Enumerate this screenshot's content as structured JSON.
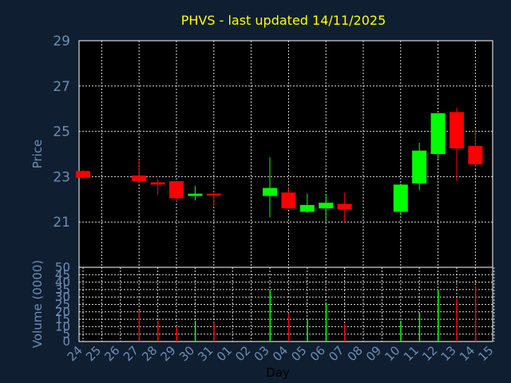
{
  "title": "PHVS - last updated 14/11/2025",
  "chart_data": [
    {
      "type": "candlestick",
      "ylabel": "Price",
      "ylim": [
        19,
        29
      ],
      "yticks": [
        29,
        27,
        25,
        23,
        21
      ],
      "grid": true,
      "colors": {
        "up": "#00ff00",
        "down": "#ff0000"
      },
      "candles": [
        {
          "x": "24",
          "open": 23.25,
          "high": 23.3,
          "low": 22.9,
          "close": 22.95
        },
        {
          "x": "27",
          "open": 23.05,
          "high": 23.75,
          "low": 22.75,
          "close": 22.8
        },
        {
          "x": "28",
          "open": 22.75,
          "high": 22.9,
          "low": 22.2,
          "close": 22.65
        },
        {
          "x": "29",
          "open": 22.8,
          "high": 22.8,
          "low": 21.9,
          "close": 22.05
        },
        {
          "x": "30",
          "open": 22.15,
          "high": 22.6,
          "low": 21.95,
          "close": 22.25
        },
        {
          "x": "31",
          "open": 22.25,
          "high": 22.35,
          "low": 21.7,
          "close": 22.2
        },
        {
          "x": "03",
          "open": 22.15,
          "high": 23.85,
          "low": 21.2,
          "close": 22.5
        },
        {
          "x": "04",
          "open": 22.3,
          "high": 22.5,
          "low": 21.6,
          "close": 21.6
        },
        {
          "x": "05",
          "open": 21.45,
          "high": 22.25,
          "low": 21.4,
          "close": 21.75
        },
        {
          "x": "06",
          "open": 21.6,
          "high": 22.2,
          "low": 21.1,
          "close": 21.85
        },
        {
          "x": "07",
          "open": 21.8,
          "high": 22.3,
          "low": 21.0,
          "close": 21.55
        },
        {
          "x": "10",
          "open": 21.45,
          "high": 22.7,
          "low": 21.3,
          "close": 22.65
        },
        {
          "x": "11",
          "open": 22.7,
          "high": 24.5,
          "low": 22.4,
          "close": 24.15
        },
        {
          "x": "12",
          "open": 24.0,
          "high": 25.8,
          "low": 23.8,
          "close": 25.8
        },
        {
          "x": "13",
          "open": 25.85,
          "high": 26.05,
          "low": 22.8,
          "close": 24.25
        },
        {
          "x": "14",
          "open": 24.35,
          "high": 25.1,
          "low": 23.45,
          "close": 23.55
        }
      ]
    },
    {
      "type": "bar",
      "ylabel": "Volume (0000)",
      "ylim": [
        0,
        50
      ],
      "yticks": [
        50,
        45,
        40,
        35,
        30,
        25,
        20,
        15,
        10,
        5,
        0
      ],
      "xlabel": "Day",
      "categories": [
        "24",
        "25",
        "26",
        "27",
        "28",
        "29",
        "30",
        "31",
        "01",
        "02",
        "03",
        "04",
        "05",
        "06",
        "07",
        "08",
        "09",
        "10",
        "11",
        "12",
        "13",
        "14",
        "15"
      ],
      "values": [
        0,
        0,
        0,
        21,
        14,
        10,
        14,
        13,
        0,
        0,
        35,
        19,
        15,
        26,
        12,
        0,
        0,
        14,
        19,
        35,
        29,
        37,
        0
      ],
      "bar_colors": [
        "#ff0000",
        "#ff0000",
        "#ff0000",
        "#ff0000",
        "#ff0000",
        "#ff0000",
        "#00ff00",
        "#ff0000",
        "#ff0000",
        "#ff0000",
        "#00ff00",
        "#ff0000",
        "#00ff00",
        "#00ff00",
        "#ff0000",
        "#ff0000",
        "#ff0000",
        "#00ff00",
        "#00ff00",
        "#00ff00",
        "#ff0000",
        "#ff0000",
        "#ff0000"
      ]
    }
  ]
}
